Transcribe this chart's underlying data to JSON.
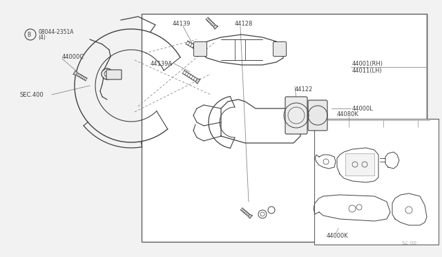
{
  "bg_color": "#ffffff",
  "outer_bg": "#f0f0f0",
  "labels": {
    "B_label": "B",
    "bolt_label": "08044-2351A\n   (4)",
    "44000C": "44000C",
    "SEC400": "SEC.400",
    "44139": "44139",
    "44128": "44128",
    "44139A": "44139A",
    "44000L": "44000L",
    "44122": "44122",
    "44001RH": "44001(RH)\n44011(LH)",
    "44080K": "44080K",
    "44000K": "44000K",
    "watermark": "S∠·00·"
  },
  "line_color": "#404040",
  "text_color": "#404040",
  "dash_color": "#888888",
  "box_color": "#606060"
}
